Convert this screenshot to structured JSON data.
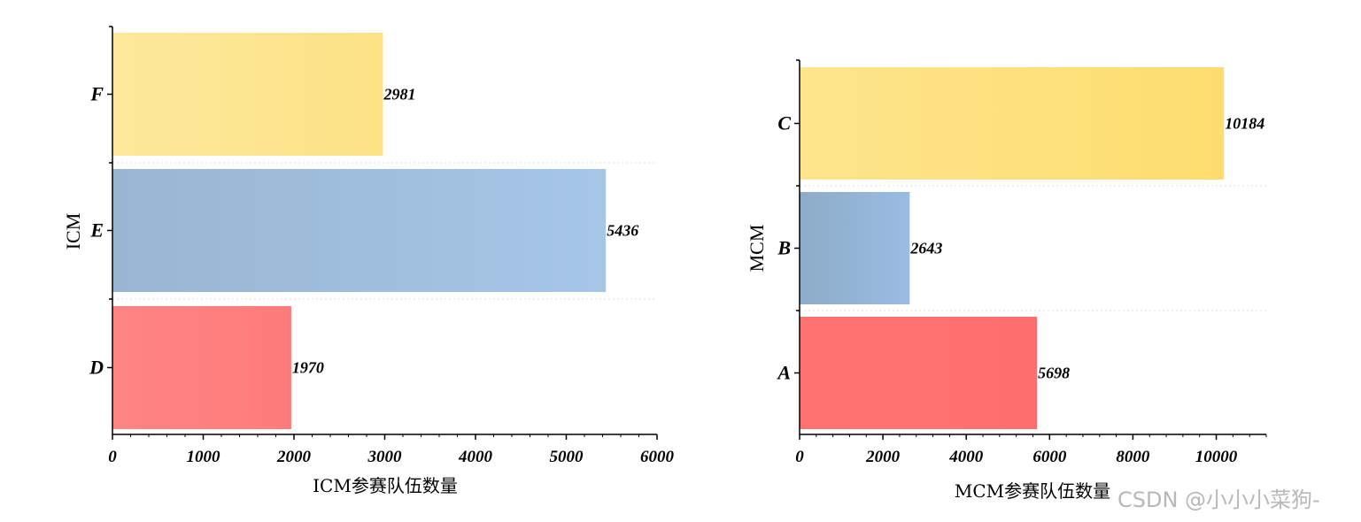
{
  "chart_data": [
    {
      "type": "bar",
      "orientation": "horizontal",
      "categories": [
        "D",
        "E",
        "F"
      ],
      "values": [
        1970,
        5436,
        2981
      ],
      "colors": [
        "#ff7f7f",
        "#9ab7d6",
        "#fde48e"
      ],
      "xlabel": "ICM参赛队伍数量",
      "ylabel": "ICM",
      "xlim": [
        0,
        6000
      ],
      "xticks": [
        0,
        1000,
        2000,
        3000,
        4000,
        5000,
        6000
      ],
      "grid": "dotted separators between categories"
    },
    {
      "type": "bar",
      "orientation": "horizontal",
      "categories": [
        "A",
        "B",
        "C"
      ],
      "values": [
        5698,
        2643,
        10184
      ],
      "colors": [
        "#ff7070",
        "#93b4d8",
        "#fde07a"
      ],
      "xlabel": "MCM参赛队伍数量",
      "ylabel": "MCM",
      "xlim": [
        0,
        11200
      ],
      "xticks": [
        0,
        2000,
        4000,
        6000,
        8000,
        10000
      ],
      "grid": "dotted separators between categories"
    }
  ],
  "watermark": "CSDN @小小小菜狗-"
}
